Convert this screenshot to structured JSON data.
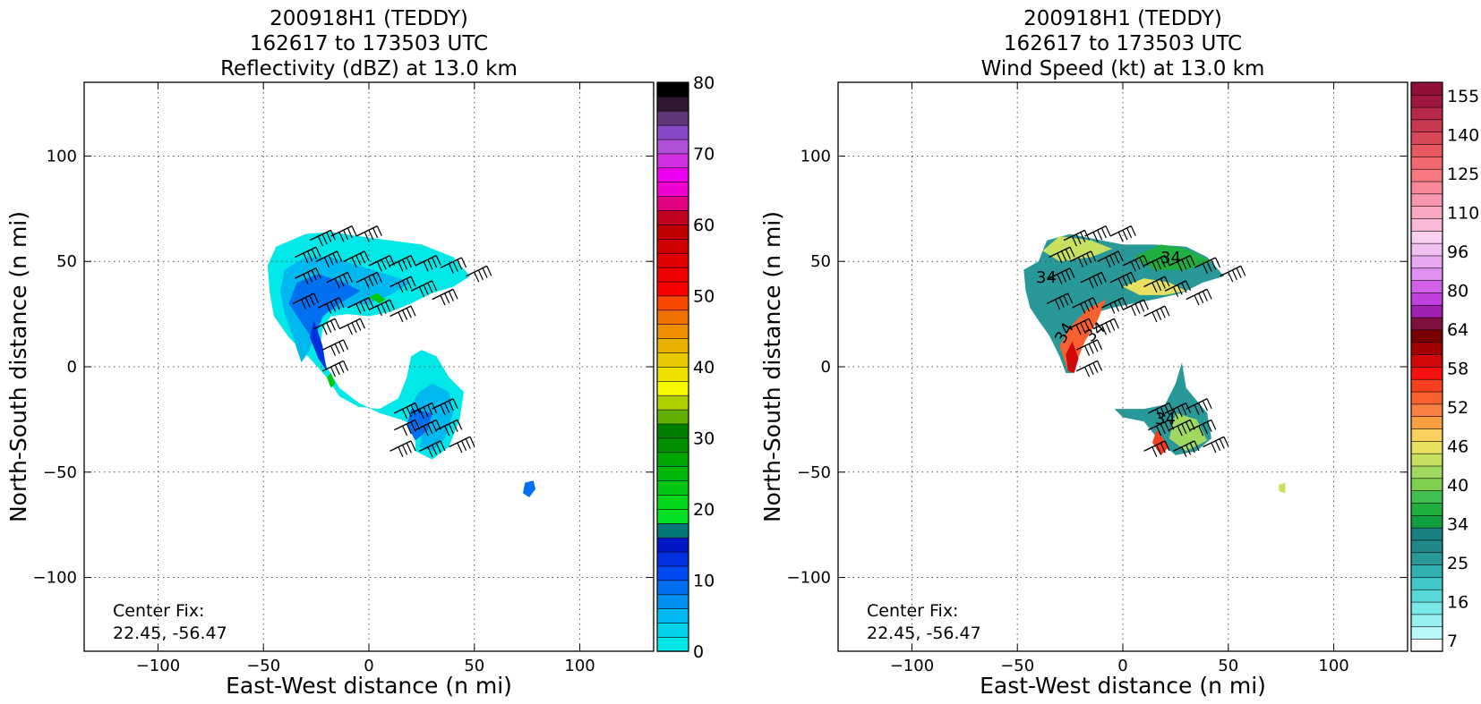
{
  "figure": {
    "center_fix_label": "Center Fix:",
    "center_fix_value": "22.45, -56.47"
  },
  "chart_data": [
    {
      "type": "heatmap",
      "title_lines": [
        "200918H1 (TEDDY)",
        "162617 to 173503 UTC",
        "Reflectivity (dBZ) at 13.0 km"
      ],
      "xlabel": "East-West distance (n mi)",
      "ylabel": "North-South distance (n mi)",
      "xlim": [
        -135,
        135
      ],
      "ylim": [
        -135,
        135
      ],
      "xticks": [
        -100,
        -50,
        0,
        50,
        100
      ],
      "yticks": [
        -100,
        -50,
        0,
        50,
        100
      ],
      "grid": true,
      "colorbar": {
        "min": 0,
        "max": 80,
        "step": 2.5,
        "tick_values": [
          0,
          10,
          20,
          30,
          40,
          50,
          60,
          70,
          80
        ],
        "colors": [
          "#00e8e8",
          "#00d0e8",
          "#00b8f0",
          "#0090f0",
          "#0070f0",
          "#0048f0",
          "#0030e0",
          "#0018c8",
          "#007878",
          "#00e020",
          "#00d818",
          "#00c810",
          "#00b808",
          "#00a800",
          "#009000",
          "#008000",
          "#60b000",
          "#b0d000",
          "#f8f800",
          "#f0e000",
          "#e8c800",
          "#e8b000",
          "#f09000",
          "#f07000",
          "#f84800",
          "#f80000",
          "#f00000",
          "#e00000",
          "#d00000",
          "#c00000",
          "#c00020",
          "#e00080",
          "#f000d0",
          "#f000f0",
          "#d030e0",
          "#b050d8",
          "#8848c8",
          "#603878",
          "#301830",
          "#000000"
        ]
      },
      "wind_barb_levels": [],
      "contour_labels": []
    },
    {
      "type": "heatmap",
      "title_lines": [
        "200918H1 (TEDDY)",
        "162617 to 173503 UTC",
        "Wind Speed (kt) at 13.0 km"
      ],
      "xlabel": "East-West distance (n mi)",
      "ylabel": "North-South distance (n mi)",
      "xlim": [
        -135,
        135
      ],
      "ylim": [
        -135,
        135
      ],
      "xticks": [
        -100,
        -50,
        0,
        50,
        100
      ],
      "yticks": [
        -100,
        -50,
        0,
        50,
        100
      ],
      "grid": true,
      "colorbar": {
        "bounds": [
          4,
          160
        ],
        "tick_labels": [
          "7",
          "16",
          "25",
          "34",
          "40",
          "46",
          "52",
          "58",
          "64",
          "80",
          "96",
          "110",
          "125",
          "140",
          "155"
        ],
        "colors": [
          "#ffffff",
          "#b8f8f8",
          "#98f0f0",
          "#78e8e8",
          "#58d8d8",
          "#40c8c8",
          "#30b0b0",
          "#289898",
          "#208888",
          "#188080",
          "#10a040",
          "#20b040",
          "#40c050",
          "#80d050",
          "#a0d860",
          "#c8e060",
          "#e8e060",
          "#f8d060",
          "#f8a040",
          "#f88040",
          "#f86030",
          "#f84020",
          "#f81010",
          "#d00808",
          "#a00000",
          "#780000",
          "#801040",
          "#a020b0",
          "#c040e0",
          "#d060e8",
          "#e090f0",
          "#e8a8f0",
          "#f0c0f0",
          "#f8d0f0",
          "#f8b8d8",
          "#f8a8c0",
          "#f898b0",
          "#f88898",
          "#f87880",
          "#f06870",
          "#e85860",
          "#d84858",
          "#c83850",
          "#b82848",
          "#a01840",
          "#901038"
        ]
      },
      "contour_labels": [
        "34",
        "34",
        "34",
        "34",
        "34"
      ]
    }
  ]
}
